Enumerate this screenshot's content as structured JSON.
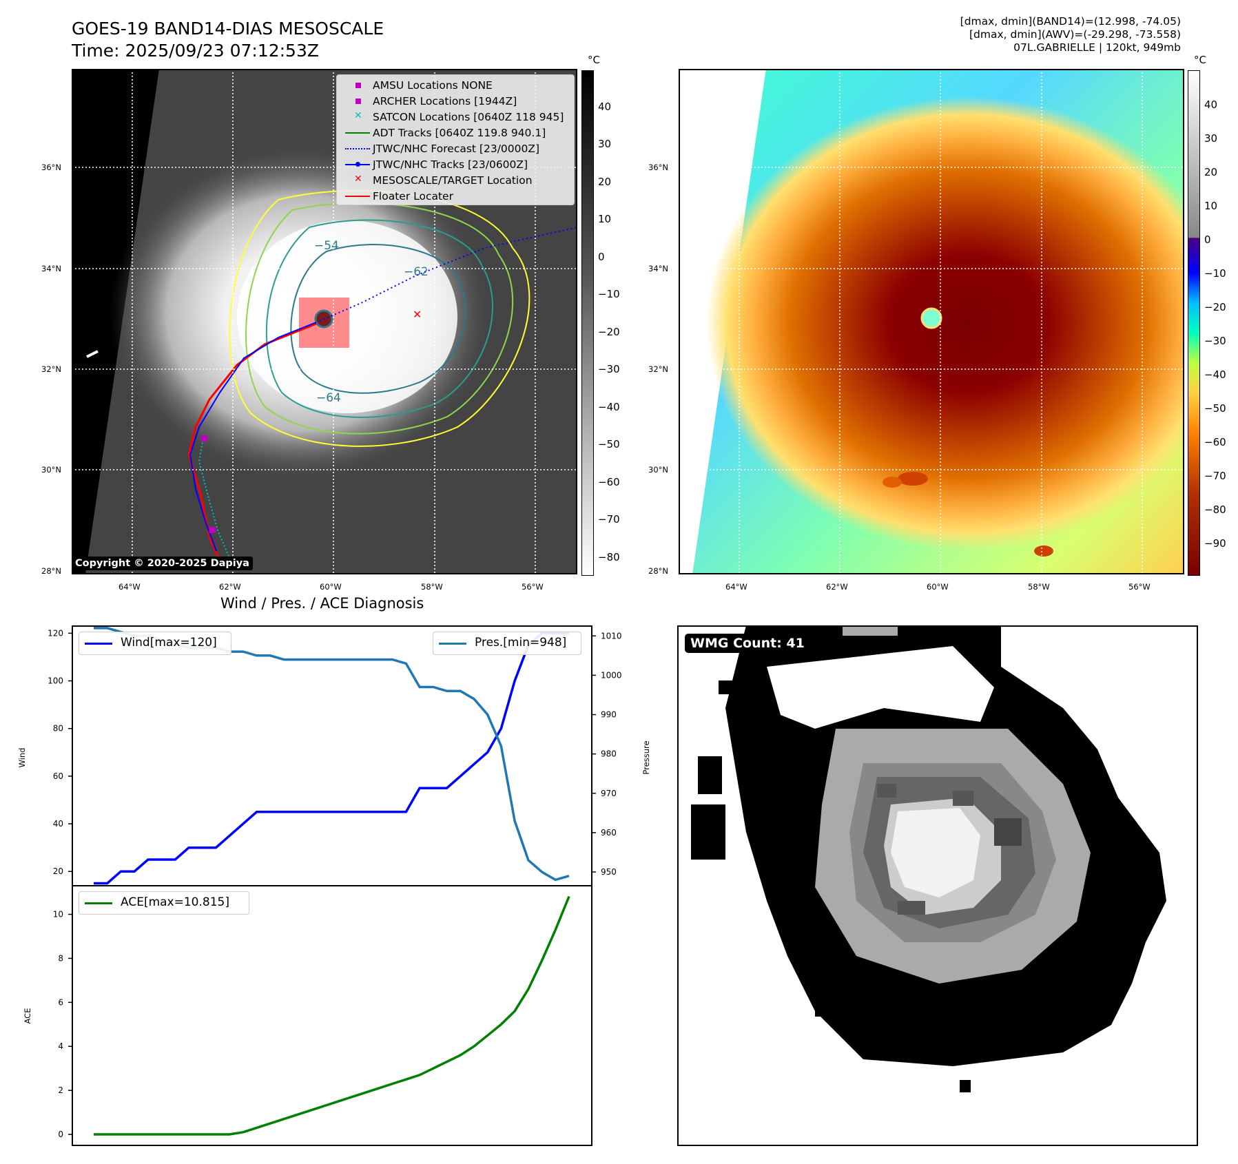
{
  "header": {
    "title_line1": "GOES-19 BAND14-DIAS MESOSCALE",
    "title_line2": "Time: 2025/09/23 07:12:53Z",
    "info_line1": "[dmax, dmin](BAND14)=(12.998, -74.05)",
    "info_line2": "[dmax, dmin](AWV)=(-29.298, -73.558)",
    "info_line3": "07L.GABRIELLE | 120kt, 949mb"
  },
  "map": {
    "lat_labels": [
      "36°N",
      "34°N",
      "32°N",
      "30°N",
      "28°N"
    ],
    "lon_labels": [
      "64°W",
      "62°W",
      "60°W",
      "58°W",
      "56°W"
    ],
    "contour_labels": [
      "−54",
      "−62",
      "−64"
    ],
    "colorbar_unit": "°C",
    "colorbar_gray_ticks": [
      "40",
      "30",
      "20",
      "10",
      "0",
      "−10",
      "−20",
      "−30",
      "−40",
      "−50",
      "−60",
      "−70",
      "−80"
    ],
    "colorbar_color_ticks": [
      "40",
      "30",
      "20",
      "10",
      "0",
      "−10",
      "−20",
      "−30",
      "−40",
      "−50",
      "−60",
      "−70",
      "−80",
      "−90"
    ],
    "copyright": "Copyright © 2020-2025 Dapiya",
    "legend": [
      {
        "label": "AMSU Locations NONE",
        "symbol": "square",
        "color": "#bf00bf"
      },
      {
        "label": "ARCHER Locations [1944Z]",
        "symbol": "square",
        "color": "#bf00bf"
      },
      {
        "label": "SATCON Locations [0640Z 118 945]",
        "symbol": "x",
        "color": "#00bfbf"
      },
      {
        "label": "ADT Tracks [0640Z 119.8 940.1]",
        "symbol": "line",
        "color": "#008000"
      },
      {
        "label": "JTWC/NHC Forecast [23/0000Z]",
        "symbol": "dotted",
        "color": "#0000ff"
      },
      {
        "label": "JTWC/NHC Tracks [23/0600Z]",
        "symbol": "line-dot",
        "color": "#0000ff"
      },
      {
        "label": "MESOSCALE/TARGET Location",
        "symbol": "x",
        "color": "#ff0000"
      },
      {
        "label": "Floater Locater",
        "symbol": "line",
        "color": "#ff0000"
      }
    ]
  },
  "diagnosis": {
    "title": "Wind / Pres. / ACE Diagnosis",
    "wind_legend": "Wind[max=120]",
    "pres_legend": "Pres.[min=948]",
    "ace_legend": "ACE[max=10.815]",
    "ylabel_wind": "Wind",
    "ylabel_pres": "Pressure",
    "ylabel_ace": "ACE"
  },
  "wmg": {
    "label": "WMG Count: 41"
  },
  "chart_data": [
    {
      "type": "line",
      "title": "Wind / Pres. / ACE Diagnosis",
      "ylabel": "Wind",
      "ylim": [
        14,
        123
      ],
      "yticks": [
        20,
        40,
        60,
        80,
        100,
        120
      ],
      "series": [
        {
          "name": "Wind[max=120]",
          "color": "#0000ff",
          "values": [
            15,
            15,
            20,
            20,
            25,
            25,
            25,
            30,
            30,
            30,
            35,
            40,
            45,
            45,
            45,
            45,
            45,
            45,
            45,
            45,
            45,
            45,
            45,
            45,
            55,
            55,
            55,
            60,
            65,
            70,
            80,
            100,
            115,
            120,
            120,
            120
          ]
        }
      ]
    },
    {
      "type": "line",
      "ylabel": "Pressure",
      "ylim": [
        946.5,
        1012.5
      ],
      "yticks": [
        950,
        960,
        970,
        980,
        990,
        1000,
        1010
      ],
      "series": [
        {
          "name": "Pres.[min=948]",
          "color": "#1f77b4",
          "values": [
            1012,
            1012,
            1011,
            1010,
            1010,
            1009,
            1008,
            1007,
            1007,
            1007,
            1006,
            1006,
            1005,
            1005,
            1004,
            1004,
            1004,
            1004,
            1004,
            1004,
            1004,
            1004,
            1004,
            1003,
            997,
            997,
            996,
            996,
            994,
            990,
            982,
            963,
            953,
            950,
            948,
            949
          ]
        }
      ]
    },
    {
      "type": "line",
      "ylabel": "ACE",
      "ylim": [
        -0.5,
        11.3
      ],
      "yticks": [
        0,
        2,
        4,
        6,
        8,
        10
      ],
      "series": [
        {
          "name": "ACE[max=10.815]",
          "color": "#008000",
          "values": [
            0,
            0,
            0,
            0,
            0,
            0,
            0,
            0,
            0,
            0,
            0,
            0.1,
            0.3,
            0.5,
            0.7,
            0.9,
            1.1,
            1.3,
            1.5,
            1.7,
            1.9,
            2.1,
            2.3,
            2.5,
            2.7,
            3.0,
            3.3,
            3.6,
            4.0,
            4.5,
            5.0,
            5.6,
            6.6,
            7.9,
            9.3,
            10.815
          ]
        }
      ]
    }
  ]
}
